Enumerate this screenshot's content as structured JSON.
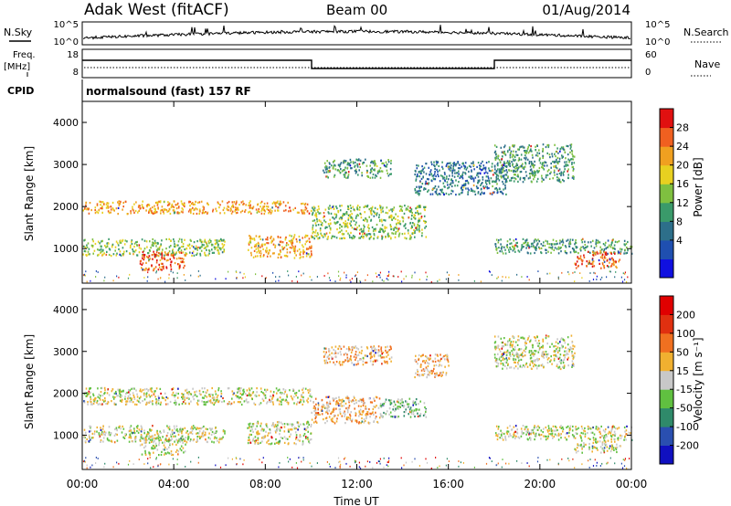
{
  "header": {
    "station": "Adak West (fitACF)",
    "beam": "Beam 00",
    "date": "01/Aug/2014"
  },
  "noise_panel": {
    "left_label": "N.Sky",
    "right_label": "N.Search",
    "left_ticks": [
      "10^5",
      "10^0"
    ],
    "right_ticks": [
      "10^5",
      "10^0"
    ]
  },
  "freq_panel": {
    "left_label": "Freq.",
    "left_unit": "[MHz]",
    "right_label": "Nave",
    "left_ticks": [
      "18",
      "8"
    ],
    "right_ticks": [
      "60",
      "0"
    ]
  },
  "cpid": {
    "label": "CPID",
    "value": "normalsound (fast) 157 RF"
  },
  "chart_data": [
    {
      "type": "heatmap",
      "name": "power",
      "ylabel": "Slant Range [km]",
      "xlabel": "",
      "yticks": [
        "4000",
        "3000",
        "2000",
        "1000"
      ],
      "ylim": [
        180,
        4500
      ],
      "xlim": [
        0,
        24
      ],
      "colorbar": {
        "label": "Power [dB]",
        "ticks": [
          "28",
          "24",
          "20",
          "16",
          "12",
          "8",
          "4"
        ],
        "colors": [
          "#1010e0",
          "#1f4fb0",
          "#2d6f8a",
          "#3a9a6a",
          "#7fc040",
          "#e8d020",
          "#f0a020",
          "#f06020",
          "#e01010"
        ]
      },
      "regions": [
        {
          "t0": 0.0,
          "t1": 10.0,
          "r0": 1850,
          "r1": 2150,
          "level": 6
        },
        {
          "t0": 0.0,
          "t1": 6.2,
          "r0": 850,
          "r1": 1250,
          "level": 4
        },
        {
          "t0": 2.5,
          "t1": 4.5,
          "r0": 500,
          "r1": 950,
          "level": 7
        },
        {
          "t0": 7.2,
          "t1": 10.0,
          "r0": 800,
          "r1": 1350,
          "level": 6
        },
        {
          "t0": 10.0,
          "t1": 15.0,
          "r0": 1250,
          "r1": 2050,
          "level": 4
        },
        {
          "t0": 10.5,
          "t1": 13.5,
          "r0": 2700,
          "r1": 3150,
          "level": 3
        },
        {
          "t0": 14.5,
          "t1": 18.5,
          "r0": 2300,
          "r1": 3100,
          "level": 2
        },
        {
          "t0": 18.0,
          "t1": 21.5,
          "r0": 2600,
          "r1": 3500,
          "level": 3
        },
        {
          "t0": 18.0,
          "t1": 24.0,
          "r0": 900,
          "r1": 1250,
          "level": 3
        },
        {
          "t0": 21.5,
          "t1": 23.5,
          "r0": 550,
          "r1": 950,
          "level": 7
        }
      ]
    },
    {
      "type": "heatmap",
      "name": "velocity",
      "ylabel": "Slant Range [km]",
      "xlabel": "Time UT",
      "yticks": [
        "4000",
        "3000",
        "2000",
        "1000"
      ],
      "xticks": [
        "00:00",
        "04:00",
        "08:00",
        "12:00",
        "16:00",
        "20:00",
        "00:00"
      ],
      "ylim": [
        180,
        4500
      ],
      "xlim": [
        0,
        24
      ],
      "colorbar": {
        "label": "Velocity [m s⁻¹]",
        "ticks": [
          "200",
          "100",
          "50",
          "15",
          "-15",
          "-50",
          "-100",
          "-200"
        ],
        "colors": [
          "#1010c0",
          "#2a4fb0",
          "#2f8a6a",
          "#60c040",
          "#c8c8c8",
          "#f0b030",
          "#f07020",
          "#e03010",
          "#e00000"
        ]
      },
      "regions": [
        {
          "t0": 0.0,
          "t1": 10.0,
          "r0": 1750,
          "r1": 2150,
          "level": 4
        },
        {
          "t0": 0.0,
          "t1": 6.2,
          "r0": 850,
          "r1": 1250,
          "level": 4
        },
        {
          "t0": 2.5,
          "t1": 4.5,
          "r0": 550,
          "r1": 950,
          "level": 4
        },
        {
          "t0": 7.2,
          "t1": 10.0,
          "r0": 800,
          "r1": 1350,
          "level": 4
        },
        {
          "t0": 10.0,
          "t1": 13.0,
          "r0": 1300,
          "r1": 1950,
          "level": 5
        },
        {
          "t0": 13.0,
          "t1": 15.0,
          "r0": 1450,
          "r1": 1900,
          "level": 3
        },
        {
          "t0": 10.5,
          "t1": 13.5,
          "r0": 2700,
          "r1": 3150,
          "level": 5
        },
        {
          "t0": 14.5,
          "t1": 16.0,
          "r0": 2400,
          "r1": 2950,
          "level": 5
        },
        {
          "t0": 18.0,
          "t1": 21.5,
          "r0": 2600,
          "r1": 3400,
          "level": 4
        },
        {
          "t0": 18.0,
          "t1": 24.0,
          "r0": 900,
          "r1": 1250,
          "level": 4
        },
        {
          "t0": 21.5,
          "t1": 23.5,
          "r0": 600,
          "r1": 900,
          "level": 4
        }
      ]
    }
  ]
}
